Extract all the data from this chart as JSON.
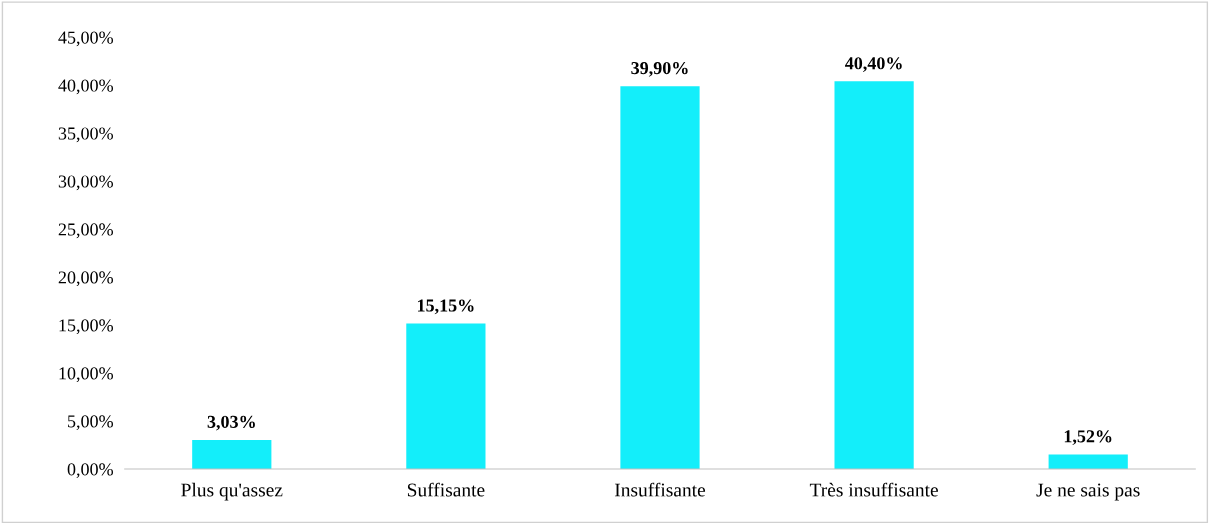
{
  "chart_data": {
    "type": "bar",
    "categories": [
      "Plus qu'assez",
      "Suffisante",
      "Insuffisante",
      "Très insuffisante",
      "Je ne sais pas"
    ],
    "values": [
      3.03,
      15.15,
      39.9,
      40.4,
      1.52
    ],
    "value_labels": [
      "3,03%",
      "15,15%",
      "39,90%",
      "40,40%",
      "1,52%"
    ],
    "color": "#13eefa",
    "ylim": [
      0,
      45
    ],
    "yticks": [
      {
        "value": 0,
        "label": "0,00%"
      },
      {
        "value": 5,
        "label": "5,00%"
      },
      {
        "value": 10,
        "label": "10,00%"
      },
      {
        "value": 15,
        "label": "15,00%"
      },
      {
        "value": 20,
        "label": "20,00%"
      },
      {
        "value": 25,
        "label": "25,00%"
      },
      {
        "value": 30,
        "label": "30,00%"
      },
      {
        "value": 35,
        "label": "35,00%"
      },
      {
        "value": 40,
        "label": "40,00%"
      },
      {
        "value": 45,
        "label": "45,00%"
      }
    ],
    "grid": false,
    "legend": false
  }
}
